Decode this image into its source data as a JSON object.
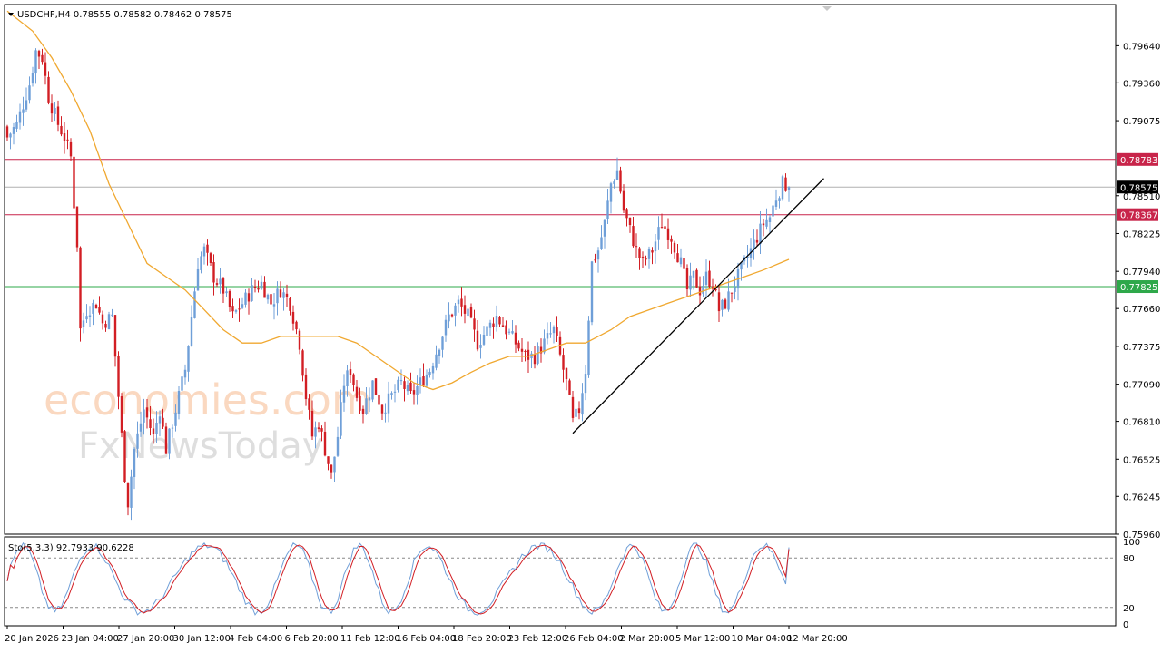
{
  "header": {
    "symbol_line": "USDCHF,H4  0.78555 0.78582 0.78462 0.78575",
    "stoch_line": "Sto(5,3,3) 92.7933 90.6228"
  },
  "watermark": {
    "line1": "economies.com",
    "line2": "FxNewsToday"
  },
  "colors": {
    "bull": "#6f9fd8",
    "bear": "#d21e24",
    "ma": "#f0a830",
    "resistance": "#c8244a",
    "support": "#2ea84a",
    "price_line": "#b0b0b0",
    "trendline": "#000000",
    "sto_main": "#6f9fd8",
    "sto_signal": "#d21e24"
  },
  "chart_data": [
    {
      "type": "line",
      "title": "USDCHF,H4",
      "ylim": [
        0.7596,
        0.7995
      ],
      "y_ticks": [
        "0.79640",
        "0.79360",
        "0.79075",
        "0.78510",
        "0.78225",
        "0.77940",
        "0.77660",
        "0.77375",
        "0.77090",
        "0.76810",
        "0.76525",
        "0.76245",
        "0.75960"
      ],
      "x_tick_labels": [
        "20 Jan 2026",
        "23 Jan 04:00",
        "27 Jan 20:00",
        "30 Jan 12:00",
        "4 Feb 04:00",
        "6 Feb 20:00",
        "11 Feb 12:00",
        "16 Feb 04:00",
        "18 Feb 20:00",
        "23 Feb 12:00",
        "26 Feb 04:00",
        "2 Mar 20:00",
        "5 Mar 12:00",
        "10 Mar 04:00",
        "12 Mar 20:00"
      ],
      "candle_count": 256,
      "close_anchors": [
        [
          0,
          0.7895
        ],
        [
          3,
          0.7905
        ],
        [
          7,
          0.7935
        ],
        [
          9,
          0.796
        ],
        [
          11,
          0.7955
        ],
        [
          13,
          0.7925
        ],
        [
          16,
          0.7905
        ],
        [
          18,
          0.7895
        ],
        [
          20,
          0.788
        ],
        [
          21,
          0.7845
        ],
        [
          22,
          0.7815
        ],
        [
          23,
          0.775
        ],
        [
          25,
          0.7765
        ],
        [
          28,
          0.777
        ],
        [
          30,
          0.7755
        ],
        [
          33,
          0.776
        ],
        [
          35,
          0.77
        ],
        [
          37,
          0.764
        ],
        [
          38,
          0.762
        ],
        [
          40,
          0.766
        ],
        [
          43,
          0.769
        ],
        [
          46,
          0.767
        ],
        [
          48,
          0.769
        ],
        [
          50,
          0.766
        ],
        [
          53,
          0.769
        ],
        [
          56,
          0.772
        ],
        [
          58,
          0.776
        ],
        [
          60,
          0.78
        ],
        [
          62,
          0.781
        ],
        [
          65,
          0.779
        ],
        [
          68,
          0.778
        ],
        [
          71,
          0.776
        ],
        [
          74,
          0.777
        ],
        [
          77,
          0.778
        ],
        [
          80,
          0.7785
        ],
        [
          83,
          0.777
        ],
        [
          86,
          0.778
        ],
        [
          89,
          0.777
        ],
        [
          92,
          0.774
        ],
        [
          94,
          0.77
        ],
        [
          96,
          0.767
        ],
        [
          98,
          0.768
        ],
        [
          100,
          0.766
        ],
        [
          102,
          0.764
        ],
        [
          104,
          0.767
        ],
        [
          106,
          0.771
        ],
        [
          108,
          0.772
        ],
        [
          110,
          0.77
        ],
        [
          112,
          0.769
        ],
        [
          115,
          0.771
        ],
        [
          118,
          0.769
        ],
        [
          121,
          0.77
        ],
        [
          124,
          0.771
        ],
        [
          127,
          0.77
        ],
        [
          130,
          0.771
        ],
        [
          133,
          0.772
        ],
        [
          136,
          0.774
        ],
        [
          139,
          0.776
        ],
        [
          142,
          0.777
        ],
        [
          145,
          0.776
        ],
        [
          148,
          0.774
        ],
        [
          151,
          0.775
        ],
        [
          154,
          0.776
        ],
        [
          157,
          0.775
        ],
        [
          160,
          0.774
        ],
        [
          163,
          0.773
        ],
        [
          166,
          0.773
        ],
        [
          169,
          0.774
        ],
        [
          172,
          0.775
        ],
        [
          174,
          0.773
        ],
        [
          176,
          0.771
        ],
        [
          178,
          0.768
        ],
        [
          180,
          0.769
        ],
        [
          182,
          0.772
        ],
        [
          184,
          0.78
        ],
        [
          186,
          0.781
        ],
        [
          188,
          0.783
        ],
        [
          190,
          0.786
        ],
        [
          192,
          0.787
        ],
        [
          194,
          0.784
        ],
        [
          196,
          0.7825
        ],
        [
          198,
          0.781
        ],
        [
          200,
          0.78
        ],
        [
          203,
          0.781
        ],
        [
          206,
          0.783
        ],
        [
          209,
          0.782
        ],
        [
          212,
          0.78
        ],
        [
          214,
          0.778
        ],
        [
          216,
          0.779
        ],
        [
          218,
          0.778
        ],
        [
          220,
          0.779
        ],
        [
          222,
          0.7785
        ],
        [
          224,
          0.7765
        ],
        [
          226,
          0.777
        ],
        [
          228,
          0.778
        ],
        [
          230,
          0.779
        ],
        [
          232,
          0.78
        ],
        [
          234,
          0.781
        ],
        [
          236,
          0.782
        ],
        [
          238,
          0.783
        ],
        [
          240,
          0.7835
        ],
        [
          242,
          0.785
        ],
        [
          244,
          0.786
        ],
        [
          246,
          0.7858
        ]
      ],
      "last_candle": {
        "open": 0.78555,
        "high": 0.78582,
        "low": 0.78462,
        "close": 0.78575
      },
      "ma_anchors": [
        [
          0,
          0.799
        ],
        [
          8,
          0.7975
        ],
        [
          14,
          0.7955
        ],
        [
          20,
          0.793
        ],
        [
          26,
          0.79
        ],
        [
          32,
          0.786
        ],
        [
          38,
          0.783
        ],
        [
          44,
          0.78
        ],
        [
          50,
          0.779
        ],
        [
          56,
          0.778
        ],
        [
          62,
          0.7765
        ],
        [
          68,
          0.775
        ],
        [
          74,
          0.774
        ],
        [
          80,
          0.774
        ],
        [
          86,
          0.7745
        ],
        [
          92,
          0.7745
        ],
        [
          98,
          0.7745
        ],
        [
          104,
          0.7745
        ],
        [
          110,
          0.774
        ],
        [
          116,
          0.773
        ],
        [
          122,
          0.772
        ],
        [
          128,
          0.771
        ],
        [
          134,
          0.7705
        ],
        [
          140,
          0.771
        ],
        [
          146,
          0.7718
        ],
        [
          152,
          0.7725
        ],
        [
          158,
          0.773
        ],
        [
          164,
          0.773
        ],
        [
          170,
          0.7735
        ],
        [
          176,
          0.774
        ],
        [
          182,
          0.774
        ],
        [
          186,
          0.7745
        ],
        [
          190,
          0.775
        ],
        [
          196,
          0.776
        ],
        [
          202,
          0.7765
        ],
        [
          208,
          0.777
        ],
        [
          214,
          0.7775
        ],
        [
          220,
          0.778
        ],
        [
          226,
          0.7785
        ],
        [
          232,
          0.779
        ],
        [
          238,
          0.7795
        ],
        [
          246,
          0.7803
        ]
      ],
      "levels": [
        {
          "value": 0.78783,
          "label": "0.78783",
          "role": "resistance"
        },
        {
          "value": 0.78575,
          "label": "0.78575",
          "role": "current"
        },
        {
          "value": 0.78367,
          "label": "0.78367",
          "role": "resistance"
        },
        {
          "value": 0.77825,
          "label": "0.77825",
          "role": "support"
        }
      ],
      "trendline": {
        "from": [
          178,
          0.7672
        ],
        "to": [
          257,
          0.7864
        ]
      }
    },
    {
      "type": "line",
      "title": "Sto(5,3,3)",
      "ylim": [
        0,
        100
      ],
      "y_ticks": [
        "100",
        "80",
        "20",
        "0"
      ],
      "levels": [
        80,
        20
      ],
      "main_value": 92.7933,
      "signal_value": 90.6228
    }
  ]
}
